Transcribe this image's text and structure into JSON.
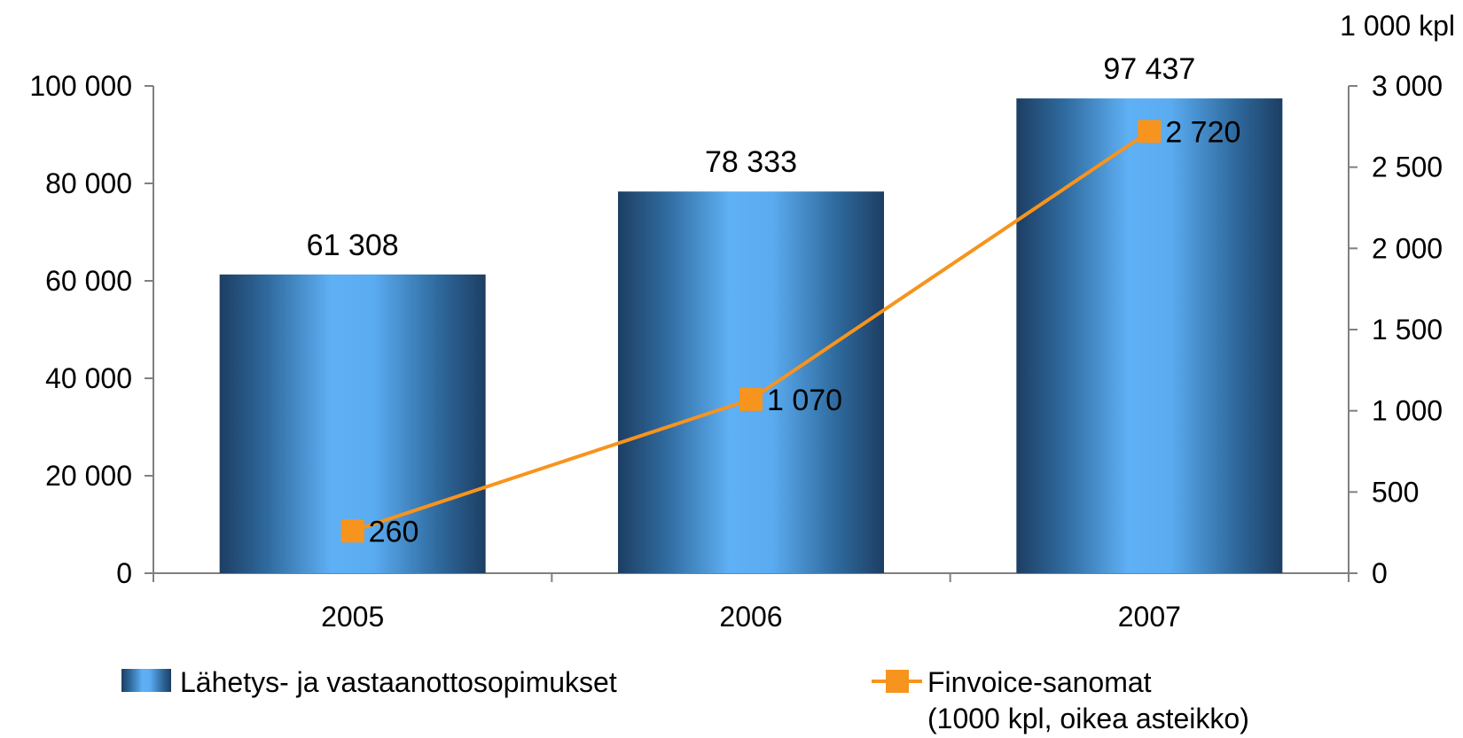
{
  "chart_data": {
    "type": "bar",
    "categories": [
      "2005",
      "2006",
      "2007"
    ],
    "series": [
      {
        "name": "Lähetys- ja vastaanottosopimukset",
        "type": "bar",
        "axis": "left",
        "values": [
          61308,
          78333,
          97437
        ],
        "labels": [
          "61 308",
          "78 333",
          "97 437"
        ],
        "color": "#5aabf0"
      },
      {
        "name": "Finvoice-sanomat",
        "name_line2": "(1000 kpl, oikea asteikko)",
        "type": "line",
        "axis": "right",
        "values": [
          260,
          1070,
          2720
        ],
        "labels": [
          "260",
          "1 070",
          "2 720"
        ],
        "color": "#f7941d"
      }
    ],
    "left_axis": {
      "ylim": [
        0,
        100000
      ],
      "ticks": [
        0,
        20000,
        40000,
        60000,
        80000,
        100000
      ],
      "tick_labels": [
        "0",
        "20 000",
        "40 000",
        "60 000",
        "80 000",
        "100 000"
      ]
    },
    "right_axis": {
      "unit_label": "1 000 kpl",
      "ylim": [
        0,
        3000
      ],
      "ticks": [
        0,
        500,
        1000,
        1500,
        2000,
        2500,
        3000
      ],
      "tick_labels": [
        "0",
        "500",
        "1 000",
        "1 500",
        "2 000",
        "2 500",
        "3 000"
      ]
    },
    "grid": false,
    "legend": "bottom"
  }
}
